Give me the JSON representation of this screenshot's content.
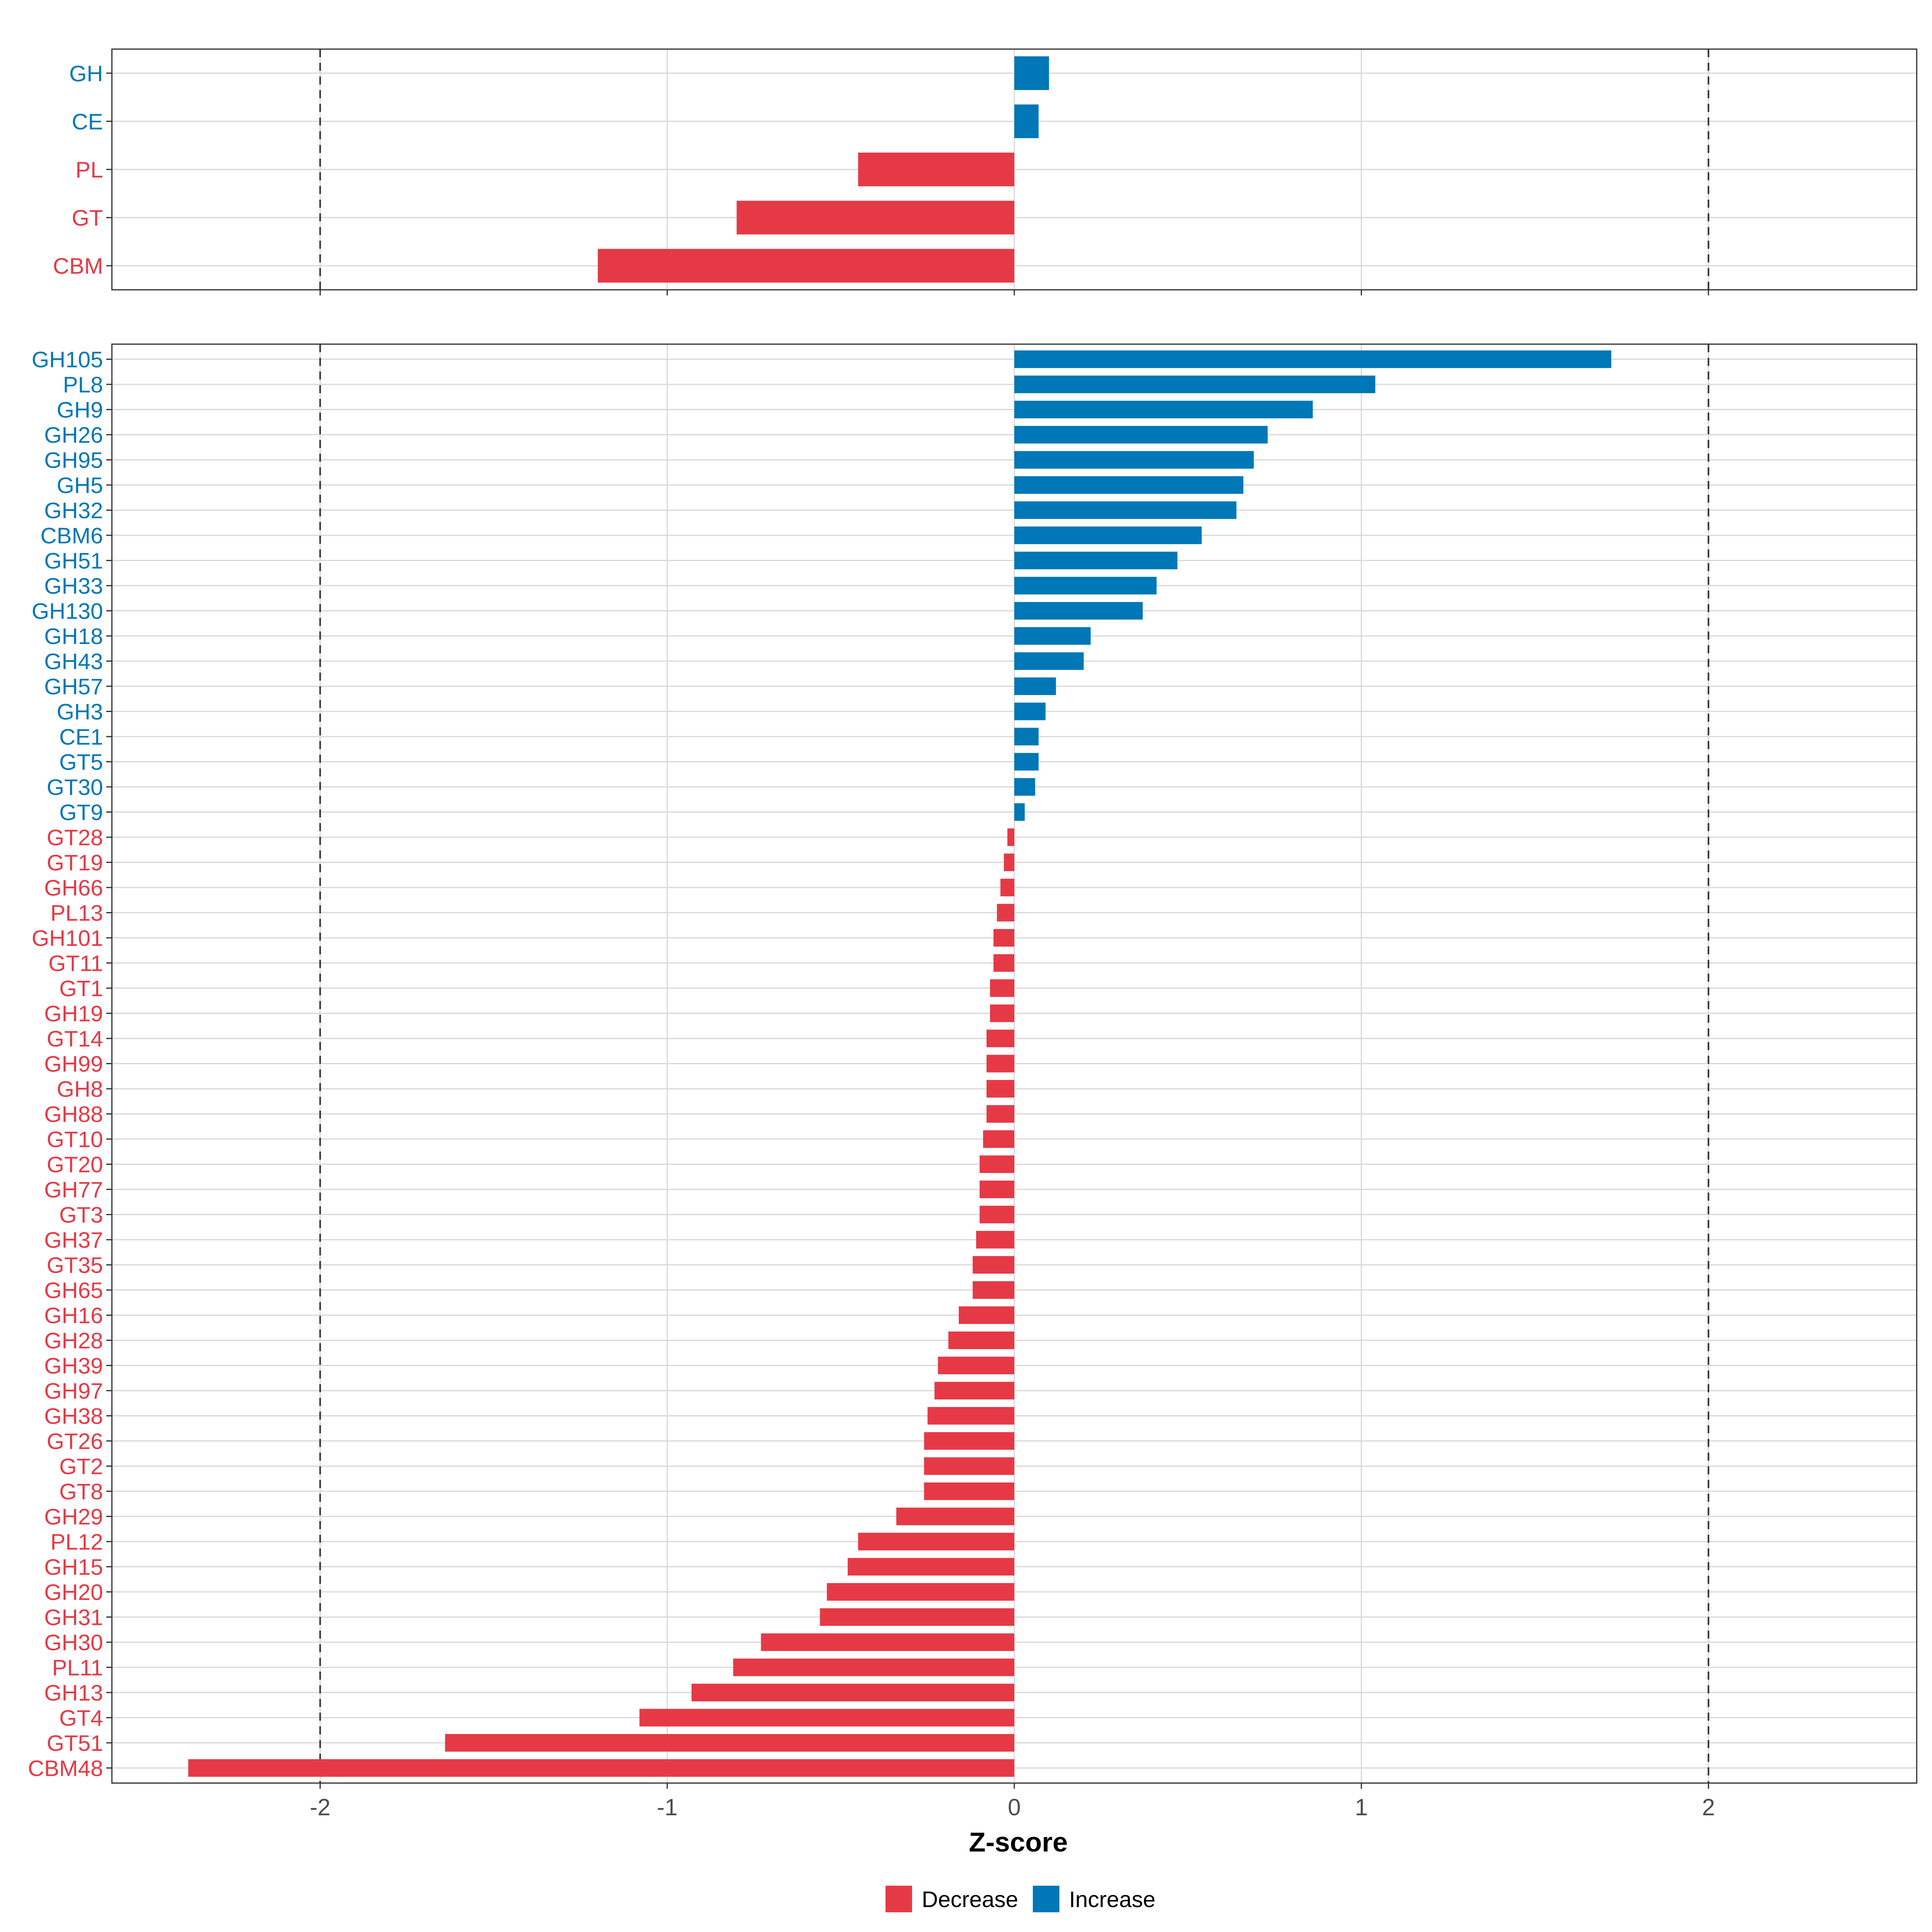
{
  "colors": {
    "decrease": "#E63946",
    "increase": "#0077B6",
    "grid": "#d9d9d9",
    "frame": "#333333",
    "refline": "#333333"
  },
  "chart_data": [
    {
      "type": "bar",
      "orientation": "horizontal",
      "panel": "top",
      "categories": [
        "GH",
        "CE",
        "PL",
        "GT",
        "CBM"
      ],
      "values": [
        0.1,
        0.07,
        -0.45,
        -0.8,
        -1.2
      ],
      "xlim": [
        -2.6,
        2.6
      ],
      "reference_lines": [
        -2,
        2
      ]
    },
    {
      "type": "bar",
      "orientation": "horizontal",
      "panel": "bottom",
      "categories": [
        "GH105",
        "PL8",
        "GH9",
        "GH26",
        "GH95",
        "GH5",
        "GH32",
        "CBM6",
        "GH51",
        "GH33",
        "GH130",
        "GH18",
        "GH43",
        "GH57",
        "GH3",
        "CE1",
        "GT5",
        "GT30",
        "GT9",
        "GT28",
        "GT19",
        "GH66",
        "PL13",
        "GH101",
        "GT11",
        "GT1",
        "GH19",
        "GT14",
        "GH99",
        "GH8",
        "GH88",
        "GT10",
        "GT20",
        "GH77",
        "GT3",
        "GH37",
        "GT35",
        "GH65",
        "GH16",
        "GH28",
        "GH39",
        "GH97",
        "GH38",
        "GT26",
        "GT2",
        "GT8",
        "GH29",
        "PL12",
        "GH15",
        "GH20",
        "GH31",
        "GH30",
        "PL11",
        "GH13",
        "GT4",
        "GT51",
        "CBM48"
      ],
      "values": [
        1.72,
        1.04,
        0.86,
        0.73,
        0.69,
        0.66,
        0.64,
        0.54,
        0.47,
        0.41,
        0.37,
        0.22,
        0.2,
        0.12,
        0.09,
        0.07,
        0.07,
        0.06,
        0.03,
        -0.02,
        -0.03,
        -0.04,
        -0.05,
        -0.06,
        -0.06,
        -0.07,
        -0.07,
        -0.08,
        -0.08,
        -0.08,
        -0.08,
        -0.09,
        -0.1,
        -0.1,
        -0.1,
        -0.11,
        -0.12,
        -0.12,
        -0.16,
        -0.19,
        -0.22,
        -0.23,
        -0.25,
        -0.26,
        -0.26,
        -0.26,
        -0.34,
        -0.45,
        -0.48,
        -0.54,
        -0.56,
        -0.73,
        -0.81,
        -0.93,
        -1.08,
        -1.64,
        -2.38
      ],
      "xlim": [
        -2.6,
        2.6
      ],
      "xticks": [
        -2,
        -1,
        0,
        1,
        2
      ],
      "xtick_labels": [
        "-2",
        "-1",
        "0",
        "1",
        "2"
      ],
      "xlabel": "Z-score",
      "reference_lines": [
        -2,
        2
      ]
    }
  ],
  "legend": {
    "placement": "bottom",
    "items": [
      {
        "label": "Decrease",
        "color": "#E63946"
      },
      {
        "label": "Increase",
        "color": "#0077B6"
      }
    ]
  }
}
